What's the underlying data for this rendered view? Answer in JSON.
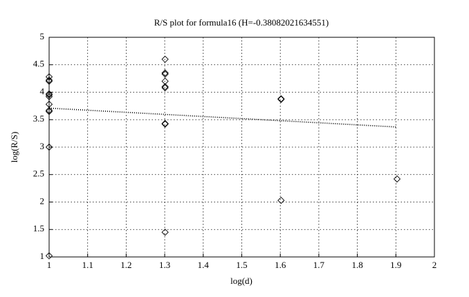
{
  "chart_data": {
    "type": "scatter",
    "title": "R/S plot for formula16 (H=-0.38082021634551)",
    "x_label": "log(d)",
    "y_label": "log(R/S)",
    "x": [
      1,
      1,
      1,
      1,
      1,
      1,
      1,
      1,
      1,
      1,
      1,
      1.301,
      1.301,
      1.301,
      1.301,
      1.301,
      1.301,
      1.301,
      1.301,
      1.301,
      1.602,
      1.602,
      1.602,
      1.903
    ],
    "values": [
      4.28,
      4.22,
      4.2,
      3.97,
      3.95,
      3.92,
      3.78,
      3.67,
      3.65,
      3.0,
      1.02,
      4.6,
      4.35,
      4.33,
      4.2,
      4.1,
      4.08,
      3.43,
      3.42,
      1.45,
      3.88,
      3.87,
      2.03,
      2.42
    ],
    "color": "#000000",
    "fit": {
      "x": [
        1,
        1.9
      ],
      "values": [
        3.71,
        3.367
      ]
    },
    "xlim": [
      1,
      2
    ],
    "xticks": [
      1,
      1.1,
      1.2,
      1.3,
      1.4,
      1.5,
      1.6,
      1.7,
      1.8,
      1.9,
      2
    ],
    "ylim": [
      1,
      5
    ],
    "yticks": [
      1,
      1.5,
      2,
      2.5,
      3,
      3.5,
      4,
      4.5,
      5
    ],
    "grid": true
  }
}
